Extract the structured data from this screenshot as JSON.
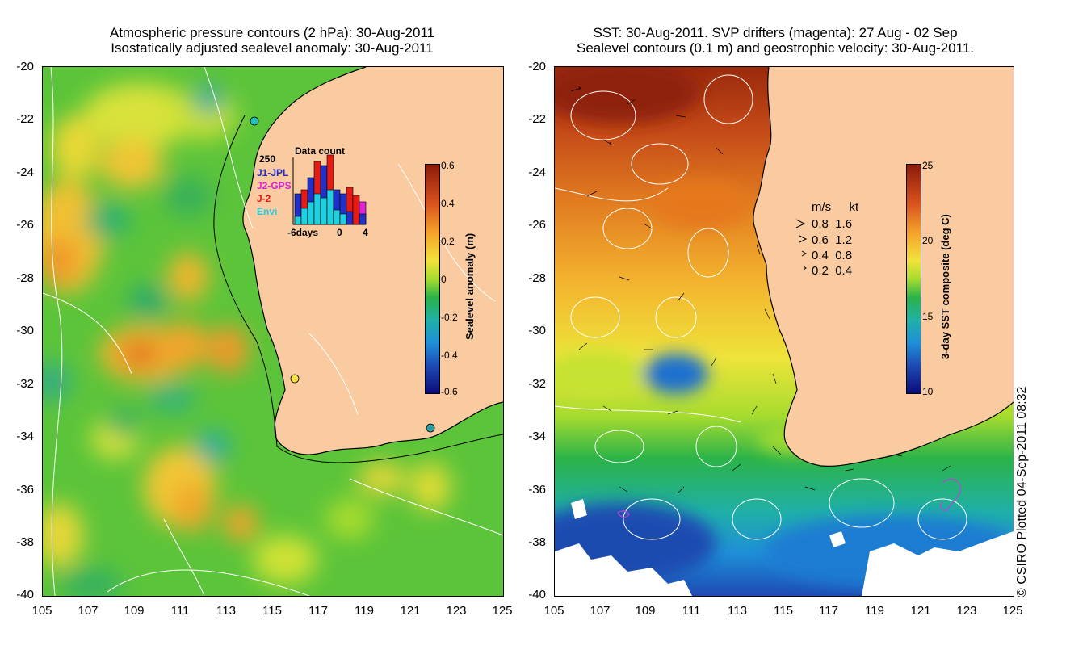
{
  "left_panel": {
    "title_line1": "Atmospheric pressure contours (2 hPa): 30-Aug-2011",
    "title_line2": "Isostatically adjusted sealevel anomaly: 30-Aug-2011",
    "colorbar": {
      "label": "Sealevel anomaly (m)",
      "ticks": [
        "0.6",
        "0.4",
        "0.2",
        "0",
        "-0.2",
        "-0.4",
        "-0.6"
      ],
      "colors": [
        "#8b1a0a",
        "#d9531e",
        "#f5a42a",
        "#f2e23b",
        "#a7dc2f",
        "#2bb348",
        "#20b0a7",
        "#1f8fd8",
        "#1e4ab3",
        "#0c0c7a"
      ]
    },
    "inset": {
      "title": "Data count",
      "ymax_label": "250",
      "x_labels": [
        "-6days",
        "0",
        "4"
      ],
      "series": [
        {
          "name": "J1-JPL",
          "color": "#2030c8"
        },
        {
          "name": "J2-GPS",
          "color": "#e020d8"
        },
        {
          "name": "J-2",
          "color": "#e81a14"
        },
        {
          "name": "Envi",
          "color": "#20d0e0"
        }
      ]
    }
  },
  "right_panel": {
    "title_line1": "SST: 30-Aug-2011. SVP drifters (magenta): 27 Aug - 02 Sep",
    "title_line2": "Sealevel contours (0.1 m) and geostrophic velocity: 30-Aug-2011.",
    "colorbar": {
      "label": "3-day SST composite (deg C)",
      "ticks": [
        "25",
        "20",
        "15",
        "10"
      ],
      "colors": [
        "#8b1a0a",
        "#d9531e",
        "#f5a42a",
        "#f2e23b",
        "#a7dc2f",
        "#2bb348",
        "#20b0a7",
        "#1f8fd8",
        "#1e4ab3",
        "#0c0c7a"
      ]
    },
    "velocity_legend": {
      "header_ms": "m/s",
      "header_kt": "kt",
      "rows": [
        {
          "ms": "0.8",
          "kt": "1.6"
        },
        {
          "ms": "0.6",
          "kt": "1.2"
        },
        {
          "ms": "0.4",
          "kt": "0.8"
        },
        {
          "ms": "0.2",
          "kt": "0.4"
        }
      ]
    }
  },
  "axes": {
    "y_ticks": [
      "-20",
      "-22",
      "-24",
      "-26",
      "-28",
      "-30",
      "-32",
      "-34",
      "-36",
      "-38",
      "-40"
    ],
    "x_ticks": [
      "105",
      "107",
      "109",
      "111",
      "113",
      "115",
      "117",
      "119",
      "121",
      "123",
      "125"
    ]
  },
  "colors": {
    "land": "#facba0",
    "ocean_base": "#5cc43a"
  },
  "copyright": "© CSIRO Plotted 04-Sep-2011 08:32"
}
